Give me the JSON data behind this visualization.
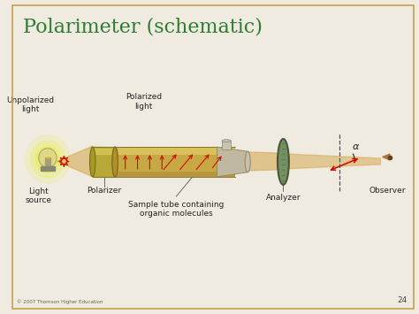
{
  "title": "Polarimeter (schematic)",
  "title_color": "#2e7d32",
  "title_fontsize": 16,
  "bg_color": "#f0ebe0",
  "border_color": "#c8a050",
  "copyright": "© 2007 Thomson Higher Education",
  "page_num": "24",
  "labels": {
    "unpolarized_light": "Unpolarized\nlight",
    "polarized_light": "Polarized\nlight",
    "light_source": "Light\nsource",
    "polarizer": "Polarizer",
    "sample_tube": "Sample tube containing\norganic molecules",
    "analyzer": "Analyzer",
    "observer": "Observer",
    "alpha": "α"
  },
  "colors": {
    "light_beam": "#d4a44a",
    "tube_body": "#c8a844",
    "tube_shadow": "#9a8230",
    "tube_highlight": "#e8d870",
    "polarizer_disk": "#b8b860",
    "analyzer_disk": "#6a8858",
    "analyzer_dark": "#405030",
    "red_arrows": "#cc1100",
    "bulb_glow": "#e8f040",
    "bulb_color": "#e0d888",
    "bulb_base": "#888870",
    "vertical_line": "#555555",
    "text_color": "#222222",
    "cap_color": "#c8c4b0",
    "cap_dark": "#909080"
  }
}
